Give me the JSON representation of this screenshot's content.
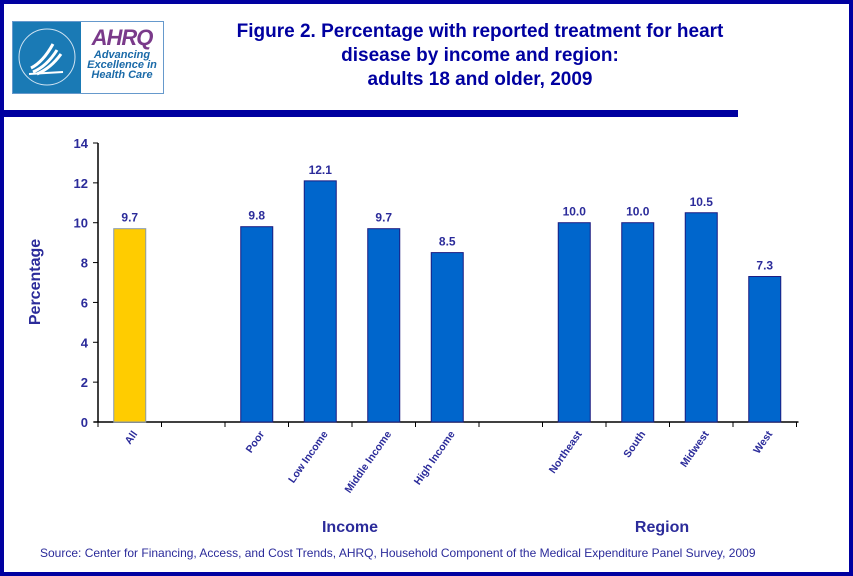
{
  "logo": {
    "agency": "AHRQ",
    "tagline": [
      "Advancing",
      "Excellence in",
      "Health Care"
    ]
  },
  "title_lines": [
    "Figure 2. Percentage with reported treatment for heart",
    "disease by income and region:",
    "adults 18 and older, 2009"
  ],
  "source": "Source: Center for Financing, Access, and Cost Trends, AHRQ, Household Component of the Medical Expenditure Panel Survey, 2009",
  "colors": {
    "frame": "#0000a0",
    "bar": "#0066cc",
    "highlight": "#ffcc00",
    "text": "#2b2b9a"
  },
  "chart_data": {
    "type": "bar",
    "title": "Figure 2. Percentage with reported treatment for heart disease by income and region: adults 18 and older, 2009",
    "ylabel": "Percentage",
    "ylim": [
      0,
      14
    ],
    "yticks": [
      0,
      2,
      4,
      6,
      8,
      10,
      12,
      14
    ],
    "grid": false,
    "categories": [
      "All",
      "",
      "Poor",
      "Low Income",
      "Middle Income",
      "High Income",
      "",
      "Northeast",
      "South",
      "Midwest",
      "West"
    ],
    "values": [
      9.7,
      null,
      9.8,
      12.1,
      9.7,
      8.5,
      null,
      10.0,
      10.0,
      10.5,
      7.3
    ],
    "data_labels": [
      "9.7",
      "",
      "9.8",
      "12.1",
      "9.7",
      "8.5",
      "",
      "10.0",
      "10.0",
      "10.5",
      "7.3"
    ],
    "highlight_category": "All",
    "group_labels": [
      "Income",
      "Region"
    ]
  }
}
